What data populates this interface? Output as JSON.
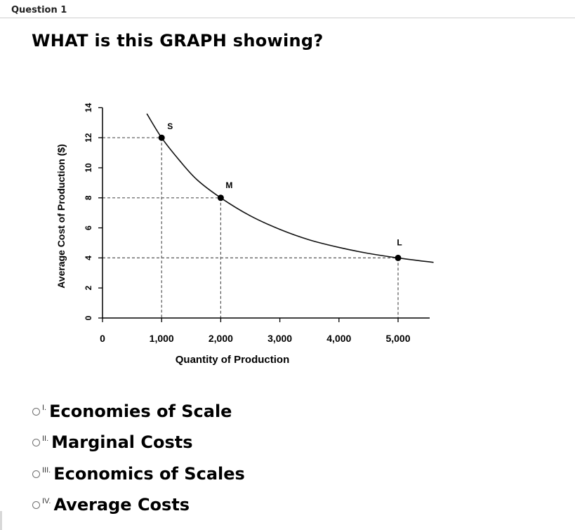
{
  "question": {
    "header": "Question 1",
    "prompt": "WHAT is this GRAPH showing?"
  },
  "chart_data": {
    "type": "line",
    "title": "",
    "xlabel": "Quantity of Production",
    "ylabel": "Average Cost of Production ($)",
    "xlim": [
      0,
      5600
    ],
    "ylim": [
      0,
      14
    ],
    "xticks": [
      0,
      1000,
      2000,
      3000,
      4000,
      5000
    ],
    "xtick_labels": [
      "0",
      "1,000",
      "2,000",
      "3,000",
      "4,000",
      "5,000"
    ],
    "yticks": [
      0,
      2,
      4,
      6,
      8,
      10,
      12,
      14
    ],
    "ytick_labels": [
      "0",
      "2",
      "4",
      "6",
      "8",
      "10",
      "12",
      "14"
    ],
    "series": [
      {
        "name": "Average cost curve",
        "x": [
          750,
          1000,
          1300,
          1600,
          2000,
          2500,
          3000,
          3500,
          4000,
          4500,
          5000,
          5600
        ],
        "y": [
          13.6,
          12,
          10.5,
          9.2,
          8,
          6.8,
          5.9,
          5.2,
          4.7,
          4.3,
          4,
          3.7
        ]
      }
    ],
    "points": [
      {
        "label": "S",
        "x": 1000,
        "y": 12
      },
      {
        "label": "M",
        "x": 2000,
        "y": 8
      },
      {
        "label": "L",
        "x": 5000,
        "y": 4
      }
    ],
    "grid": false,
    "legend": "none"
  },
  "options": [
    {
      "num": "I.",
      "label": "Economies of Scale"
    },
    {
      "num": "II.",
      "label": "Marginal Costs"
    },
    {
      "num": "III.",
      "label": "Economics of Scales"
    },
    {
      "num": "IV.",
      "label": "Average Costs"
    }
  ]
}
